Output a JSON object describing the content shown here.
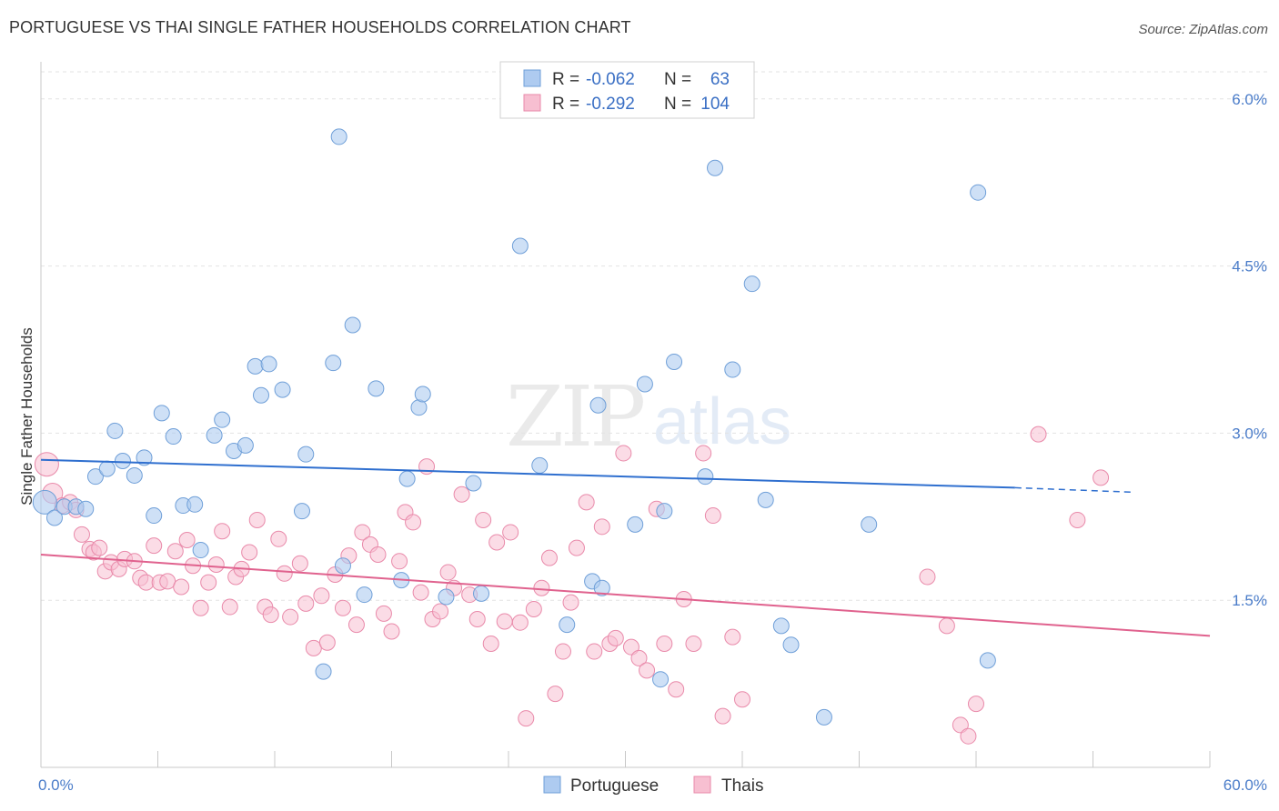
{
  "header": {
    "title": "PORTUGUESE VS THAI SINGLE FATHER HOUSEHOLDS CORRELATION CHART",
    "source": "Source: ZipAtlas.com"
  },
  "watermark": {
    "zip": "ZIP",
    "atlas": "atlas"
  },
  "colors": {
    "portuguese_fill": "#aecbf0",
    "portuguese_stroke": "#6f9fd8",
    "portuguese_line": "#2f6fcf",
    "thai_fill": "#f7bfd1",
    "thai_stroke": "#e98aaa",
    "thai_line": "#e0628e",
    "axis_label": "#4a7cc9"
  },
  "legend": {
    "rows": [
      {
        "r_label": "R =",
        "r_value": "-0.062",
        "n_label": "N =",
        "n_value": "63"
      },
      {
        "r_label": "R =",
        "r_value": "-0.292",
        "n_label": "N =",
        "n_value": "104"
      }
    ]
  },
  "bottom_legend": {
    "items": [
      "Portuguese",
      "Thais"
    ]
  },
  "chart_data": {
    "type": "scatter",
    "title": "PORTUGUESE VS THAI SINGLE FATHER HOUSEHOLDS CORRELATION CHART",
    "xlabel": "",
    "ylabel": "Single Father Households",
    "xlim": [
      0,
      60
    ],
    "ylim": [
      0,
      6.3
    ],
    "x_tick_labels": [
      "0.0%",
      "60.0%"
    ],
    "y_tick_labels": [
      "1.5%",
      "3.0%",
      "4.5%",
      "6.0%"
    ],
    "y_ticks": [
      1.5,
      3.0,
      4.5,
      6.0
    ],
    "grid": true,
    "series": [
      {
        "name": "Portuguese",
        "R": -0.062,
        "N": 63,
        "trend": {
          "x0": 0,
          "y0": 2.76,
          "x1": 50,
          "y1": 2.51,
          "dash_to_x": 56,
          "dash_to_y": 2.47
        },
        "points": [
          [
            0.2,
            2.38
          ],
          [
            0.7,
            2.24
          ],
          [
            1.2,
            2.34
          ],
          [
            1.8,
            2.34
          ],
          [
            2.3,
            2.32
          ],
          [
            2.8,
            2.61
          ],
          [
            3.4,
            2.68
          ],
          [
            3.8,
            3.02
          ],
          [
            4.2,
            2.75
          ],
          [
            4.8,
            2.62
          ],
          [
            5.3,
            2.78
          ],
          [
            5.8,
            2.26
          ],
          [
            6.2,
            3.18
          ],
          [
            6.8,
            2.97
          ],
          [
            7.3,
            2.35
          ],
          [
            7.9,
            2.36
          ],
          [
            8.2,
            1.95
          ],
          [
            8.9,
            2.98
          ],
          [
            9.3,
            3.12
          ],
          [
            9.9,
            2.84
          ],
          [
            10.5,
            2.89
          ],
          [
            11.0,
            3.6
          ],
          [
            11.3,
            3.34
          ],
          [
            11.7,
            3.62
          ],
          [
            12.4,
            3.39
          ],
          [
            13.4,
            2.3
          ],
          [
            13.6,
            2.81
          ],
          [
            14.5,
            0.86
          ],
          [
            15.0,
            3.63
          ],
          [
            15.3,
            5.66
          ],
          [
            15.5,
            1.81
          ],
          [
            16.0,
            3.97
          ],
          [
            16.6,
            1.55
          ],
          [
            17.2,
            3.4
          ],
          [
            18.5,
            1.68
          ],
          [
            18.8,
            2.59
          ],
          [
            19.4,
            3.23
          ],
          [
            19.6,
            3.35
          ],
          [
            20.8,
            1.53
          ],
          [
            22.2,
            2.55
          ],
          [
            22.6,
            1.56
          ],
          [
            24.6,
            4.68
          ],
          [
            25.6,
            2.71
          ],
          [
            27.0,
            1.28
          ],
          [
            28.3,
            1.67
          ],
          [
            28.6,
            3.25
          ],
          [
            28.8,
            1.61
          ],
          [
            30.5,
            2.18
          ],
          [
            31.0,
            3.44
          ],
          [
            31.8,
            0.79
          ],
          [
            32.0,
            2.3
          ],
          [
            32.5,
            3.64
          ],
          [
            34.1,
            2.61
          ],
          [
            34.6,
            5.38
          ],
          [
            35.5,
            3.57
          ],
          [
            36.5,
            4.34
          ],
          [
            37.2,
            2.4
          ],
          [
            38.0,
            1.27
          ],
          [
            38.5,
            1.1
          ],
          [
            40.2,
            0.45
          ],
          [
            42.5,
            2.18
          ],
          [
            48.1,
            5.16
          ],
          [
            48.6,
            0.96
          ]
        ]
      },
      {
        "name": "Thais",
        "R": -0.292,
        "N": 104,
        "trend": {
          "x0": 0,
          "y0": 1.91,
          "x1": 60,
          "y1": 1.18
        },
        "points": [
          [
            0.3,
            2.72
          ],
          [
            0.6,
            2.46
          ],
          [
            1.1,
            2.35
          ],
          [
            1.5,
            2.38
          ],
          [
            1.8,
            2.31
          ],
          [
            2.1,
            2.09
          ],
          [
            2.5,
            1.96
          ],
          [
            2.7,
            1.93
          ],
          [
            3.0,
            1.97
          ],
          [
            3.3,
            1.76
          ],
          [
            3.6,
            1.84
          ],
          [
            4.0,
            1.78
          ],
          [
            4.3,
            1.87
          ],
          [
            4.8,
            1.85
          ],
          [
            5.1,
            1.7
          ],
          [
            5.4,
            1.66
          ],
          [
            5.8,
            1.99
          ],
          [
            6.1,
            1.66
          ],
          [
            6.5,
            1.67
          ],
          [
            6.9,
            1.94
          ],
          [
            7.2,
            1.62
          ],
          [
            7.5,
            2.04
          ],
          [
            7.8,
            1.81
          ],
          [
            8.2,
            1.43
          ],
          [
            8.6,
            1.66
          ],
          [
            9.0,
            1.82
          ],
          [
            9.3,
            2.12
          ],
          [
            9.7,
            1.44
          ],
          [
            10.0,
            1.71
          ],
          [
            10.3,
            1.78
          ],
          [
            10.7,
            1.93
          ],
          [
            11.1,
            2.22
          ],
          [
            11.5,
            1.44
          ],
          [
            11.8,
            1.37
          ],
          [
            12.2,
            2.05
          ],
          [
            12.5,
            1.74
          ],
          [
            12.8,
            1.35
          ],
          [
            13.3,
            1.83
          ],
          [
            13.6,
            1.47
          ],
          [
            14.0,
            1.07
          ],
          [
            14.4,
            1.54
          ],
          [
            14.7,
            1.12
          ],
          [
            15.1,
            1.73
          ],
          [
            15.5,
            1.43
          ],
          [
            15.8,
            1.9
          ],
          [
            16.2,
            1.28
          ],
          [
            16.5,
            2.11
          ],
          [
            16.9,
            2.0
          ],
          [
            17.3,
            1.91
          ],
          [
            17.6,
            1.38
          ],
          [
            18.0,
            1.22
          ],
          [
            18.4,
            1.85
          ],
          [
            18.7,
            2.29
          ],
          [
            19.1,
            2.2
          ],
          [
            19.5,
            1.57
          ],
          [
            19.8,
            2.7
          ],
          [
            20.1,
            1.33
          ],
          [
            20.5,
            1.4
          ],
          [
            20.9,
            1.75
          ],
          [
            21.2,
            1.61
          ],
          [
            21.6,
            2.45
          ],
          [
            22.0,
            1.55
          ],
          [
            22.4,
            1.33
          ],
          [
            22.7,
            2.22
          ],
          [
            23.1,
            1.11
          ],
          [
            23.4,
            2.02
          ],
          [
            23.8,
            1.31
          ],
          [
            24.1,
            2.11
          ],
          [
            24.6,
            1.3
          ],
          [
            24.9,
            0.44
          ],
          [
            25.3,
            1.42
          ],
          [
            25.7,
            1.61
          ],
          [
            26.1,
            1.88
          ],
          [
            26.4,
            0.66
          ],
          [
            26.8,
            1.04
          ],
          [
            27.2,
            1.48
          ],
          [
            27.5,
            1.97
          ],
          [
            28.0,
            2.38
          ],
          [
            28.4,
            1.04
          ],
          [
            28.8,
            2.16
          ],
          [
            29.2,
            1.11
          ],
          [
            29.5,
            1.16
          ],
          [
            29.9,
            2.82
          ],
          [
            30.3,
            1.08
          ],
          [
            30.7,
            0.98
          ],
          [
            31.1,
            0.87
          ],
          [
            31.6,
            2.32
          ],
          [
            32.0,
            1.11
          ],
          [
            32.6,
            0.7
          ],
          [
            33.0,
            1.51
          ],
          [
            33.5,
            1.11
          ],
          [
            34.0,
            2.82
          ],
          [
            34.5,
            2.26
          ],
          [
            35.0,
            0.46
          ],
          [
            35.5,
            1.17
          ],
          [
            36.0,
            0.61
          ],
          [
            45.5,
            1.71
          ],
          [
            46.5,
            1.27
          ],
          [
            47.2,
            0.38
          ],
          [
            47.6,
            0.28
          ],
          [
            48.0,
            0.57
          ],
          [
            51.2,
            2.99
          ],
          [
            53.2,
            2.22
          ],
          [
            54.4,
            2.6
          ]
        ]
      }
    ]
  }
}
